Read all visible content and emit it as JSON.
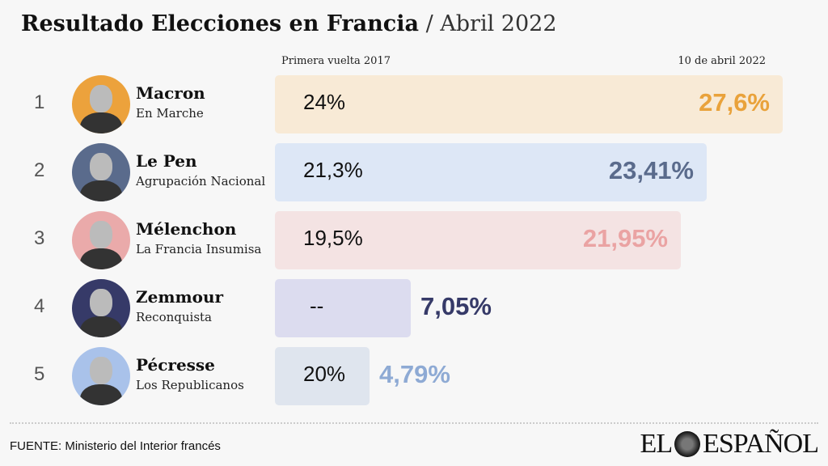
{
  "title": {
    "main": "Resultado Elecciones en Francia",
    "sub": "/ Abril 2022"
  },
  "chart_data": {
    "type": "bar",
    "orientation": "horizontal",
    "columns": {
      "prev": "Primera vuelta 2017",
      "current": "10 de abril 2022"
    },
    "categories": [
      "Macron",
      "Le Pen",
      "Mélenchon",
      "Zemmour",
      "Pécresse"
    ],
    "rows": [
      {
        "rank": "1",
        "name": "Macron",
        "party": "En Marche",
        "prev": "24%",
        "current": "27,6%",
        "value": 27.6,
        "bg": "#f8ead6",
        "color": "#e9a23b",
        "avatar_color": "#eca23c"
      },
      {
        "rank": "2",
        "name": "Le Pen",
        "party": "Agrupación Nacional",
        "prev": "21,3%",
        "current": "23,41%",
        "value": 23.41,
        "bg": "#dde7f6",
        "color": "#5a6b8c",
        "avatar_color": "#5a6b8c"
      },
      {
        "rank": "3",
        "name": "Mélenchon",
        "party": "La Francia Insumisa",
        "prev": "19,5%",
        "current": "21,95%",
        "value": 21.95,
        "bg": "#f4e3e3",
        "color": "#eaa3a3",
        "avatar_color": "#eaaaaa"
      },
      {
        "rank": "4",
        "name": "Zemmour",
        "party": "Reconquista",
        "prev": "--",
        "current": "7,05%",
        "value": 7.05,
        "bg": "#dcdcef",
        "color": "#363a68",
        "avatar_color": "#363a68"
      },
      {
        "rank": "5",
        "name": "Pécresse",
        "party": "Los Republicanos",
        "prev": "20%",
        "current": "4,79%",
        "value": 4.79,
        "bg": "#dfe5ee",
        "color": "#8eaad4",
        "avatar_color": "#a9c2ea"
      }
    ]
  },
  "footer": {
    "source": "FUENTE:  Ministerio del Interior francés",
    "logo": "EL ESPAÑOL"
  }
}
